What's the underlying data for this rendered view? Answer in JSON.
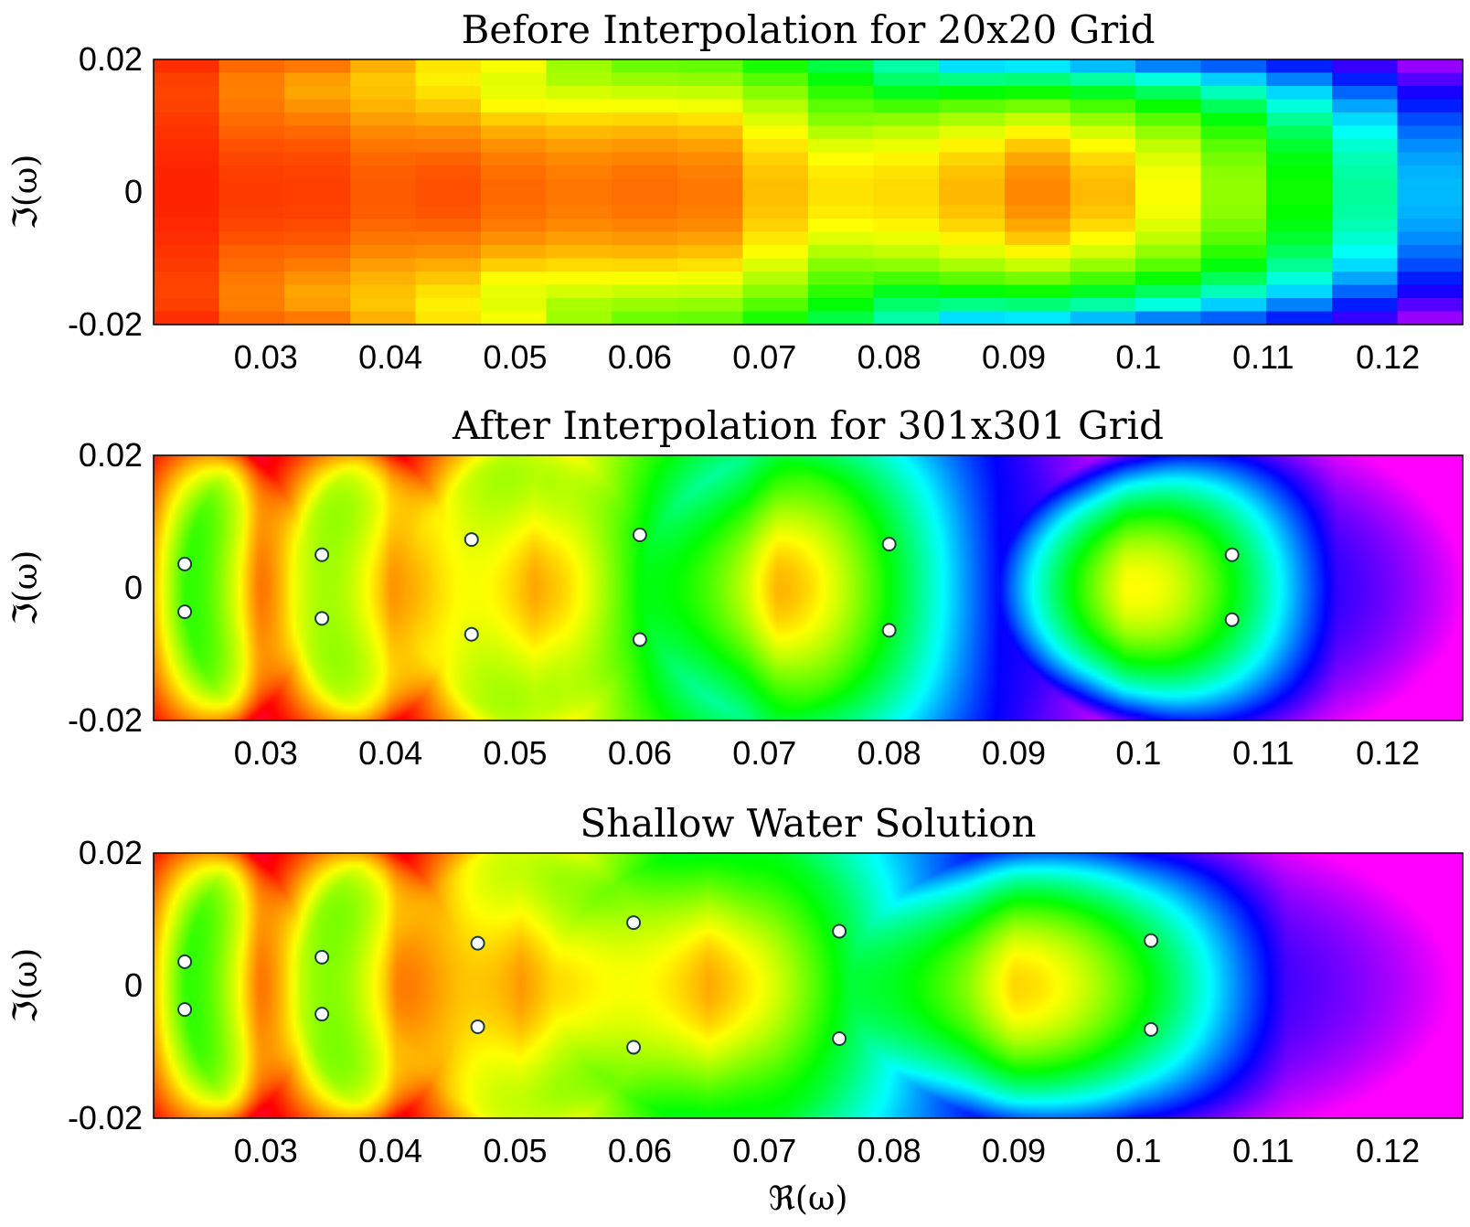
{
  "chart_data": [
    {
      "type": "heatmap",
      "title": "Before Interpolation for 20x20 Grid",
      "ylabel": "ℑ(ω)",
      "xlabel": "",
      "xlim": [
        0.021,
        0.126
      ],
      "ylim": [
        -0.02,
        0.02
      ],
      "xticks": [
        0.03,
        0.04,
        0.05,
        0.06,
        0.07,
        0.08,
        0.09,
        0.1,
        0.11,
        0.12
      ],
      "xtick_labels": [
        "0.03",
        "0.04",
        "0.05",
        "0.06",
        "0.07",
        "0.08",
        "0.09",
        "0.1",
        "0.11",
        "0.12"
      ],
      "yticks": [
        0.02,
        0,
        -0.02
      ],
      "ytick_labels": [
        "0.02",
        "0",
        "-0.02"
      ],
      "grid": false,
      "grid_size": [
        20,
        20
      ],
      "color_scale": "phase-hsv",
      "zeros": [
        0.0235,
        0.0345,
        0.0465,
        0.0615,
        0.0805,
        0.108
      ],
      "half_width": [
        0.009,
        0.012,
        0.014,
        0.016,
        0.017,
        0.016
      ],
      "max_hue": [
        90,
        180,
        200,
        190,
        170,
        175
      ]
    },
    {
      "type": "heatmap",
      "title": "After Interpolation for 301x301 Grid",
      "ylabel": "ℑ(ω)",
      "xlabel": "",
      "xlim": [
        0.021,
        0.126
      ],
      "ylim": [
        -0.02,
        0.02
      ],
      "xticks": [
        0.03,
        0.04,
        0.05,
        0.06,
        0.07,
        0.08,
        0.09,
        0.1,
        0.11,
        0.12
      ],
      "xtick_labels": [
        "0.03",
        "0.04",
        "0.05",
        "0.06",
        "0.07",
        "0.08",
        "0.09",
        "0.1",
        "0.11",
        "0.12"
      ],
      "yticks": [
        0.02,
        0,
        -0.02
      ],
      "ytick_labels": [
        "0.02",
        "0",
        "-0.02"
      ],
      "grid": false,
      "grid_size": [
        301,
        301
      ],
      "color_scale": "phase-hsv",
      "zeros": [
        0.0235,
        0.0345,
        0.0465,
        0.06,
        0.08,
        0.1075
      ],
      "half_width": [
        0.0045,
        0.005,
        0.0065,
        0.0085,
        0.009,
        0.0085
      ],
      "max_hue": [
        215,
        230,
        235,
        240,
        240,
        240
      ],
      "poles": [
        {
          "x": 0.0235,
          "y": 0.0036
        },
        {
          "x": 0.0235,
          "y": -0.0036
        },
        {
          "x": 0.0345,
          "y": 0.005
        },
        {
          "x": 0.0345,
          "y": -0.0046
        },
        {
          "x": 0.0465,
          "y": 0.0073
        },
        {
          "x": 0.0465,
          "y": -0.007
        },
        {
          "x": 0.06,
          "y": 0.008
        },
        {
          "x": 0.06,
          "y": -0.0078
        },
        {
          "x": 0.08,
          "y": 0.0066
        },
        {
          "x": 0.08,
          "y": -0.0064
        },
        {
          "x": 0.1075,
          "y": 0.005
        },
        {
          "x": 0.1075,
          "y": -0.0048
        }
      ]
    },
    {
      "type": "heatmap",
      "title": "Shallow Water Solution",
      "ylabel": "ℑ(ω)",
      "xlabel": "ℜ(ω)",
      "xlim": [
        0.021,
        0.126
      ],
      "ylim": [
        -0.02,
        0.02
      ],
      "xticks": [
        0.03,
        0.04,
        0.05,
        0.06,
        0.07,
        0.08,
        0.09,
        0.1,
        0.11,
        0.12
      ],
      "xtick_labels": [
        "0.03",
        "0.04",
        "0.05",
        "0.06",
        "0.07",
        "0.08",
        "0.09",
        "0.1",
        "0.11",
        "0.12"
      ],
      "yticks": [
        0.02,
        0,
        -0.02
      ],
      "ytick_labels": [
        "0.02",
        "0",
        "-0.02"
      ],
      "grid": false,
      "color_scale": "phase-hsv",
      "zeros": [
        0.0235,
        0.0345,
        0.047,
        0.0595,
        0.076,
        0.101
      ],
      "half_width": [
        0.0045,
        0.005,
        0.0065,
        0.009,
        0.0105,
        0.011
      ],
      "max_hue": [
        215,
        230,
        235,
        240,
        245,
        245
      ],
      "poles": [
        {
          "x": 0.0235,
          "y": 0.0036
        },
        {
          "x": 0.0235,
          "y": -0.0036
        },
        {
          "x": 0.0345,
          "y": 0.0043
        },
        {
          "x": 0.0345,
          "y": -0.0043
        },
        {
          "x": 0.047,
          "y": 0.0064
        },
        {
          "x": 0.047,
          "y": -0.0062
        },
        {
          "x": 0.0595,
          "y": 0.0095
        },
        {
          "x": 0.0595,
          "y": -0.0093
        },
        {
          "x": 0.076,
          "y": 0.0082
        },
        {
          "x": 0.076,
          "y": -0.008
        },
        {
          "x": 0.101,
          "y": 0.0068
        },
        {
          "x": 0.101,
          "y": -0.0066
        }
      ]
    }
  ]
}
